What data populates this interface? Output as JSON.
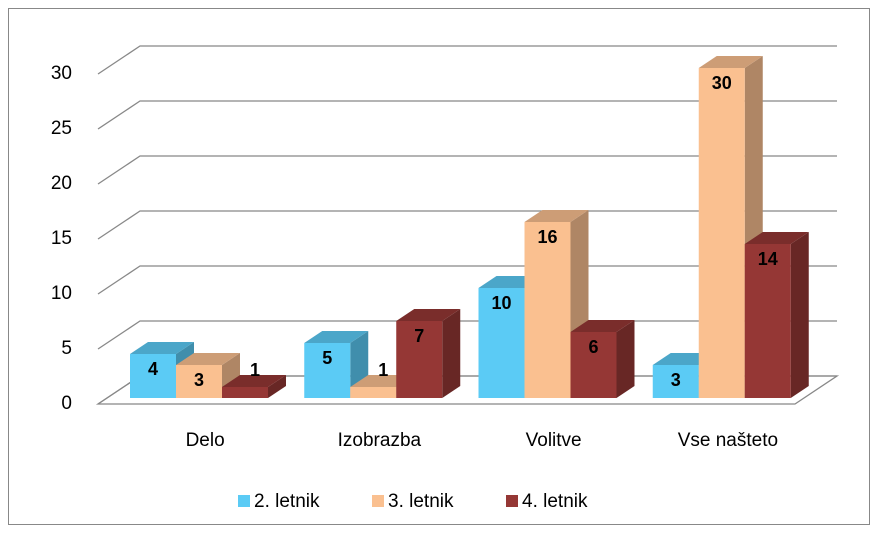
{
  "chart_data": {
    "type": "bar3d",
    "categories": [
      "Delo",
      "Izobrazba",
      "Volitve",
      "Vse našteto"
    ],
    "series": [
      {
        "name": "2. letnik",
        "color": "#5bcbf5",
        "values": [
          4,
          5,
          10,
          3
        ]
      },
      {
        "name": "3. letnik",
        "color": "#fac090",
        "values": [
          3,
          1,
          16,
          30
        ]
      },
      {
        "name": "4. letnik",
        "color": "#953735",
        "values": [
          1,
          7,
          6,
          14
        ]
      }
    ],
    "ylim": [
      0,
      30
    ],
    "yticks": [
      0,
      5,
      10,
      15,
      20,
      25,
      30
    ],
    "grid": true,
    "legend": "bottom"
  }
}
